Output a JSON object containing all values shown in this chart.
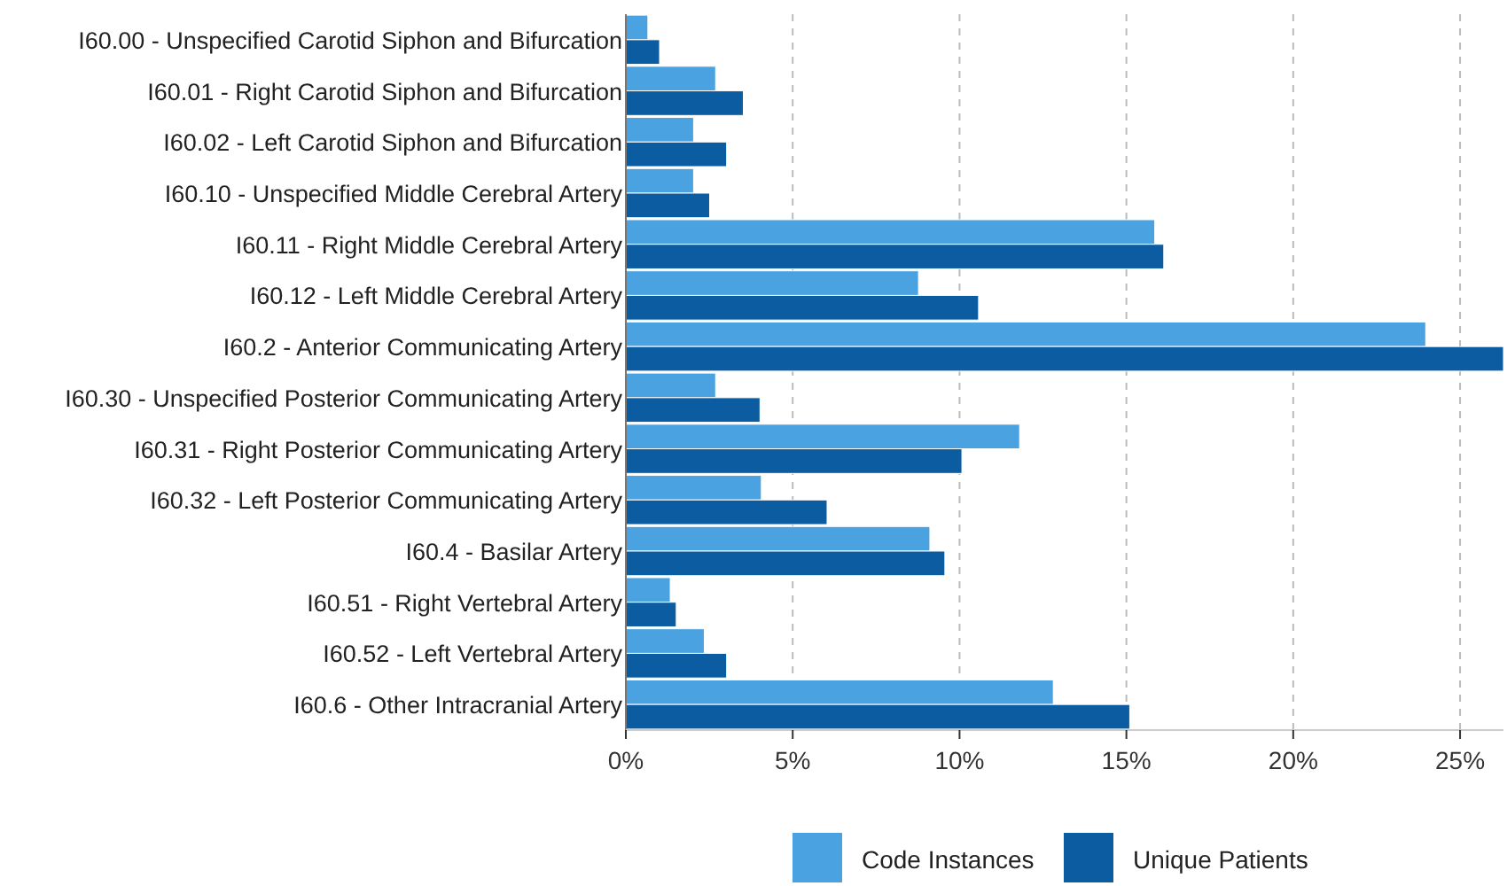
{
  "chart_data": {
    "type": "bar",
    "orientation": "horizontal",
    "categories": [
      "I60.00 - Unspecified Carotid Siphon and Bifurcation",
      "I60.01 - Right Carotid Siphon and Bifurcation",
      "I60.02 - Left Carotid Siphon and Bifurcation",
      "I60.10 - Unspecified Middle Cerebral Artery",
      "I60.11 - Right Middle Cerebral Artery",
      "I60.12 - Left Middle Cerebral Artery",
      "I60.2 - Anterior Communicating Artery",
      "I60.30 - Unspecified Posterior Communicating Artery",
      "I60.31 - Right Posterior Communicating Artery",
      "I60.32 - Left Posterior Communicating Artery",
      "I60.4 - Basilar Artery",
      "I60.51 - Right Vertebral Artery",
      "I60.52 - Left Vertebral Artery",
      "I60.6 - Other Intracranial Artery"
    ],
    "series": [
      {
        "name": "Code Instances",
        "color": "#4aa3e0",
        "values": [
          0.66,
          2.69,
          2.03,
          2.03,
          15.85,
          8.77,
          23.97,
          2.69,
          11.8,
          4.06,
          9.11,
          1.33,
          2.35,
          12.81
        ]
      },
      {
        "name": "Unique Patients",
        "color": "#0b5ca0",
        "values": [
          1.01,
          3.52,
          3.02,
          2.51,
          16.12,
          10.57,
          26.3,
          4.02,
          10.07,
          6.03,
          9.56,
          1.51,
          3.02,
          15.1
        ]
      }
    ],
    "xlim": [
      0,
      26.3
    ],
    "xticks": [
      {
        "value": 0,
        "label": "0%"
      },
      {
        "value": 5,
        "label": "5%"
      },
      {
        "value": 10,
        "label": "10%"
      },
      {
        "value": 15,
        "label": "15%"
      },
      {
        "value": 20,
        "label": "20%"
      },
      {
        "value": 25,
        "label": "25%"
      }
    ],
    "grid": "x",
    "legend": "bottom"
  }
}
